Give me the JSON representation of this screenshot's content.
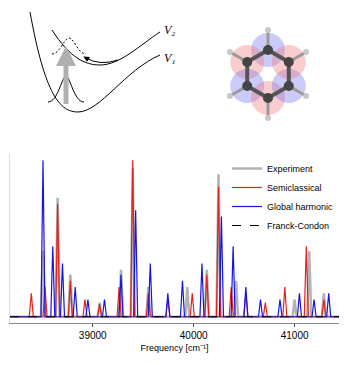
{
  "diagram": {
    "curve_labels": [
      "V₂",
      "V₁"
    ]
  },
  "chart_data": {
    "type": "line",
    "xlabel": "Frequency [cm⁻¹]",
    "xlim": [
      38180,
      41440
    ],
    "xticks": [
      39000,
      40000,
      41000
    ],
    "ylim": [
      -0.04,
      1.04
    ],
    "yticks": [],
    "tick_labels": "x",
    "grid": false,
    "legend": "top right",
    "series": [
      {
        "name": "Experiment",
        "color": "#b3b3b3",
        "line_style": "solid",
        "x": [
          38180,
          38487,
          38507,
          38527,
          38632,
          38652,
          38672,
          38758,
          38778,
          38798,
          39048,
          39068,
          39088,
          39260,
          39280,
          39300,
          39376,
          39396,
          39416,
          39531,
          39551,
          39571,
          39917,
          39937,
          39957,
          40110,
          40130,
          40150,
          40226,
          40246,
          40266,
          40400,
          40420,
          40440,
          40980,
          41000,
          41020,
          41125,
          41145,
          41165,
          41270,
          41290,
          41310,
          41440
        ],
        "values": [
          0,
          0,
          0.42,
          0,
          0,
          0.76,
          0,
          0,
          0.27,
          0,
          0,
          0.09,
          0,
          0,
          0.3,
          0,
          0,
          0.95,
          0,
          0,
          0.19,
          0,
          0,
          0.19,
          0,
          0,
          0.3,
          0,
          0,
          0.91,
          0,
          0,
          0.23,
          0,
          0,
          0.11,
          0,
          0,
          0.42,
          0,
          0,
          0.15,
          0,
          0
        ]
      },
      {
        "name": "Semiclassical",
        "color": "#e3201b",
        "line_style": "solid",
        "x": [
          38180,
          38371,
          38391,
          38411,
          38507,
          38527,
          38547,
          38632,
          38652,
          38672,
          38758,
          38778,
          38798,
          38903,
          38923,
          38943,
          39048,
          39068,
          39088,
          39241,
          39261,
          39281,
          39376,
          39396,
          39416,
          39531,
          39551,
          39571,
          39724,
          39744,
          39764,
          39966,
          39986,
          40006,
          40110,
          40130,
          40150,
          40226,
          40246,
          40266,
          40352,
          40372,
          40392,
          40497,
          40517,
          40537,
          40690,
          40710,
          40730,
          40883,
          40903,
          40923,
          41096,
          41116,
          41136,
          41270,
          41290,
          41310,
          41440
        ],
        "values": [
          0,
          0,
          0.15,
          0,
          0,
          0.19,
          0,
          0,
          0.72,
          0,
          0,
          0.23,
          0,
          0,
          0.11,
          0,
          0,
          0.08,
          0,
          0,
          0.19,
          0,
          0,
          1.0,
          0,
          0,
          0.15,
          0,
          0,
          0.11,
          0,
          0,
          0.15,
          0,
          0,
          0.27,
          0,
          0,
          0.83,
          0,
          0,
          0.19,
          0,
          0,
          0.15,
          0,
          0,
          0.09,
          0,
          0,
          0.19,
          0,
          0,
          0.45,
          0,
          0,
          0.11,
          0,
          0
        ]
      },
      {
        "name": "Global harmonic",
        "color": "#1414e6",
        "line_style": "solid",
        "x": [
          38180,
          38487,
          38507,
          38527,
          38584,
          38604,
          38624,
          38680,
          38700,
          38720,
          38806,
          38826,
          38846,
          38932,
          38952,
          38972,
          39096,
          39116,
          39136,
          39260,
          39280,
          39300,
          39405,
          39425,
          39445,
          39550,
          39570,
          39590,
          39724,
          39744,
          39764,
          39869,
          39889,
          39909,
          40062,
          40082,
          40102,
          40255,
          40275,
          40295,
          40371,
          40391,
          40411,
          40497,
          40517,
          40537,
          40642,
          40662,
          40682,
          40835,
          40855,
          40875,
          41028,
          41048,
          41068,
          41173,
          41193,
          41213,
          41318,
          41338,
          41358,
          41440
        ],
        "values": [
          0,
          0,
          1.0,
          0,
          0,
          0.45,
          0,
          0,
          0.34,
          0,
          0,
          0.19,
          0,
          0,
          0.11,
          0,
          0,
          0.11,
          0,
          0,
          0.27,
          0,
          0,
          0.68,
          0,
          0,
          0.34,
          0,
          0,
          0.15,
          0,
          0,
          0.23,
          0,
          0,
          0.34,
          0,
          0,
          0.64,
          0,
          0,
          0.45,
          0,
          0,
          0.19,
          0,
          0,
          0.11,
          0,
          0,
          0.11,
          0,
          0,
          0.15,
          0,
          0,
          0.11,
          0,
          0,
          0.15,
          0,
          0
        ]
      },
      {
        "name": "Franck-Condon",
        "color": "#000000",
        "line_style": "dashed",
        "x": [
          38180,
          41440
        ],
        "values": [
          0,
          0
        ]
      }
    ]
  }
}
